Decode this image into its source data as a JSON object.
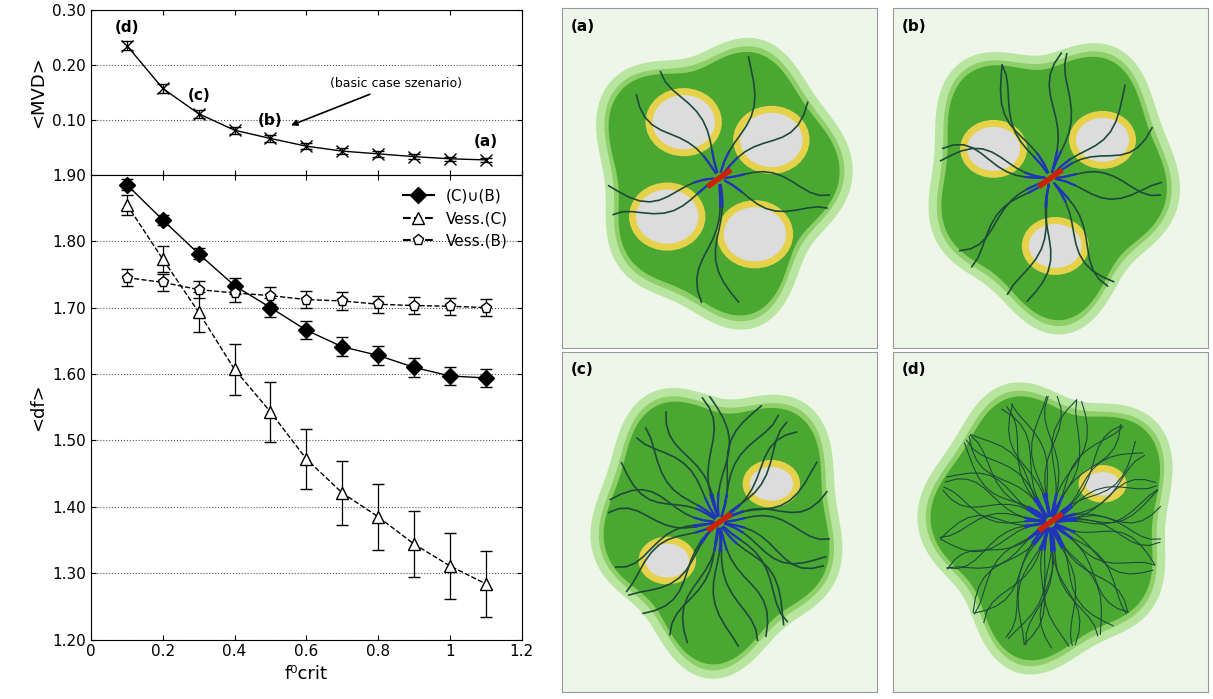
{
  "chart_data": [
    {
      "type": "line",
      "y_label": "<MVD>",
      "x": [
        0.1,
        0.2,
        0.3,
        0.4,
        0.5,
        0.6,
        0.7,
        0.8,
        0.9,
        1.0,
        1.1
      ],
      "xlim": [
        0,
        1.2
      ],
      "xticks": [
        0,
        0.2,
        0.4,
        0.6,
        0.8,
        1,
        1.2
      ],
      "ylim": [
        0,
        0.3
      ],
      "yticks": [
        {
          "value": 0.1,
          "label": "0.10"
        },
        {
          "value": 0.2,
          "label": "0.20"
        },
        {
          "value": 0.3,
          "label": "0.30"
        }
      ],
      "grid": true,
      "tick_labels": "y",
      "series": [
        {
          "name": "<MVD>",
          "color": "#000000",
          "marker": "x",
          "line_style": "solid",
          "values": [
            0.235,
            0.157,
            0.111,
            0.081,
            0.066,
            0.052,
            0.043,
            0.038,
            0.033,
            0.029,
            0.027
          ],
          "errors": [
            0.008,
            0.008,
            0.007,
            0.006,
            0.006,
            0.005,
            0.005,
            0.005,
            0.005,
            0.004,
            0.004
          ]
        }
      ],
      "annotations": [
        {
          "text": "(d)",
          "x": 0.1,
          "y": 0.235
        },
        {
          "text": "(c)",
          "x": 0.3,
          "y": 0.111
        },
        {
          "text": "(b)",
          "x": 0.5,
          "y": 0.066
        },
        {
          "text": "(a)",
          "x": 1.1,
          "y": 0.027
        },
        {
          "text": "(basic case szenario)",
          "x": 0.55,
          "y": 0.088,
          "arrow": true
        }
      ]
    },
    {
      "type": "line",
      "x_label": "f⁰crit",
      "y_label": "<df>",
      "x": [
        0.1,
        0.2,
        0.3,
        0.4,
        0.5,
        0.6,
        0.7,
        0.8,
        0.9,
        1.0,
        1.1
      ],
      "xlim": [
        0,
        1.2
      ],
      "xticks": [
        0,
        0.2,
        0.4,
        0.6,
        0.8,
        1,
        1.2
      ],
      "ylim": [
        1.2,
        1.9
      ],
      "yticks": [
        {
          "value": 1.2,
          "label": "1.20"
        },
        {
          "value": 1.3,
          "label": "1.30"
        },
        {
          "value": 1.4,
          "label": "1.40"
        },
        {
          "value": 1.5,
          "label": "1.50"
        },
        {
          "value": 1.6,
          "label": "1.60"
        },
        {
          "value": 1.7,
          "label": "1.70"
        },
        {
          "value": 1.8,
          "label": "1.80"
        },
        {
          "value": 1.9,
          "label": "1.90"
        }
      ],
      "grid": true,
      "legend": "upper right",
      "series": [
        {
          "name": "(C)∪(B)",
          "color": "#000000",
          "marker": "diamond",
          "line_style": "solid",
          "values": [
            1.885,
            1.832,
            1.781,
            1.733,
            1.7,
            1.666,
            1.641,
            1.628,
            1.61,
            1.597,
            1.594
          ],
          "errors": [
            0.008,
            0.008,
            0.008,
            0.012,
            0.014,
            0.014,
            0.014,
            0.014,
            0.014,
            0.013,
            0.013
          ]
        },
        {
          "name": "Vess.(C)",
          "color": "#000000",
          "marker": "triangle",
          "line_style": "dashed",
          "values": [
            1.855,
            1.773,
            1.693,
            1.607,
            1.543,
            1.472,
            1.421,
            1.385,
            1.344,
            1.311,
            1.284
          ],
          "errors": [
            0.015,
            0.02,
            0.03,
            0.038,
            0.045,
            0.045,
            0.048,
            0.05,
            0.05,
            0.05,
            0.05
          ]
        },
        {
          "name": "Vess.(B)",
          "color": "#000000",
          "marker": "pentagon",
          "line_style": "dashed",
          "values": [
            1.745,
            1.738,
            1.727,
            1.722,
            1.718,
            1.712,
            1.71,
            1.705,
            1.703,
            1.702,
            1.7
          ],
          "errors": [
            0.013,
            0.013,
            0.013,
            0.013,
            0.013,
            0.013,
            0.013,
            0.013,
            0.013,
            0.013,
            0.013
          ]
        }
      ]
    }
  ],
  "panels": [
    {
      "label": "(a)"
    },
    {
      "label": "(b)"
    },
    {
      "label": "(c)"
    },
    {
      "label": "(d)"
    }
  ]
}
